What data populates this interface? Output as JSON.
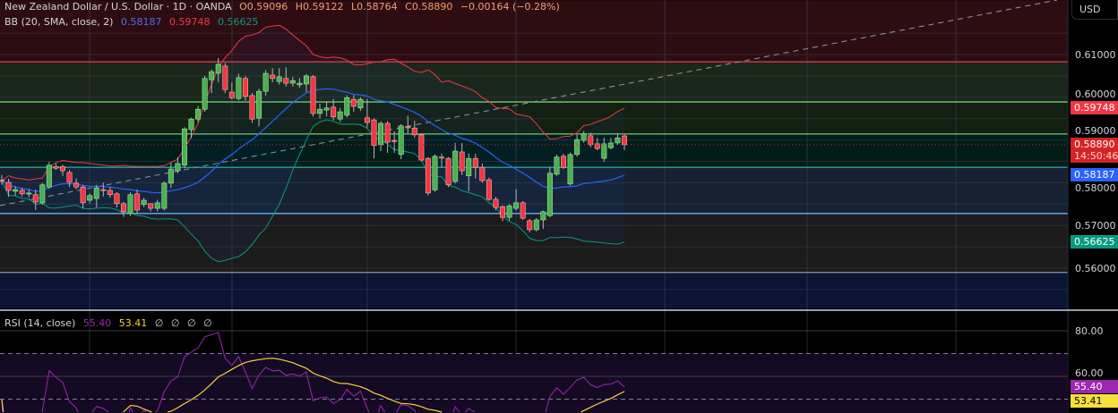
{
  "header": {
    "title": "New Zealand Dollar / U.S. Dollar · 1D · OANDA",
    "open": "O0.59096",
    "high": "H0.59122",
    "low": "L0.58764",
    "close": "C0.58890",
    "change": "−0.00164 (−0.28%)"
  },
  "bb_legend": {
    "label": "BB (20, SMA, close, 2)",
    "basis": "0.58187",
    "upper": "0.59748",
    "lower": "0.56625"
  },
  "rsi_legend": {
    "label": "RSI (14, close)",
    "rsi": "55.40",
    "ma": "53.41",
    "extra": [
      "∅",
      "∅",
      "∅",
      "∅"
    ]
  },
  "currency_button": "USD",
  "colors": {
    "up": "#4caf50",
    "down": "#f23645",
    "bb_basis": "#2962ff",
    "bb_upper": "#f23645",
    "bb_lower": "#089981",
    "rsi": "#9c27b0",
    "rsi_ma": "#f5d33b",
    "header_values": "#f0a070"
  },
  "chart_data": [
    {
      "type": "candlestick",
      "title": "New Zealand Dollar / U.S. Dollar · 1D · OANDA",
      "ylim": [
        0.5505,
        0.6227
      ],
      "grid": true,
      "y_ticks": [
        "0.61000",
        "0.60000",
        "0.59000",
        "0.58000",
        "0.57000",
        "0.56000"
      ],
      "y_tick_values": [
        0.61,
        0.6,
        0.59,
        0.58,
        0.57,
        0.56
      ],
      "ohlc_fields": [
        "open",
        "high",
        "low",
        "close"
      ],
      "ohlc": [
        [
          0.5806,
          0.5818,
          0.5795,
          0.5805
        ],
        [
          0.5801,
          0.5809,
          0.5767,
          0.5782
        ],
        [
          0.578,
          0.5792,
          0.577,
          0.5784
        ],
        [
          0.5782,
          0.5788,
          0.5768,
          0.5774
        ],
        [
          0.5776,
          0.5785,
          0.5766,
          0.5776
        ],
        [
          0.5772,
          0.5784,
          0.5736,
          0.5755
        ],
        [
          0.5753,
          0.5799,
          0.5748,
          0.5795
        ],
        [
          0.579,
          0.5849,
          0.5786,
          0.5841
        ],
        [
          0.5838,
          0.5845,
          0.583,
          0.5834
        ],
        [
          0.5838,
          0.5842,
          0.5816,
          0.5828
        ],
        [
          0.5824,
          0.583,
          0.579,
          0.5801
        ],
        [
          0.5799,
          0.581,
          0.5785,
          0.579
        ],
        [
          0.579,
          0.5795,
          0.574,
          0.5753
        ],
        [
          0.5759,
          0.5775,
          0.5752,
          0.577
        ],
        [
          0.5763,
          0.5795,
          0.5742,
          0.5788
        ],
        [
          0.5784,
          0.58,
          0.5768,
          0.5783
        ],
        [
          0.5782,
          0.579,
          0.5765,
          0.5772
        ],
        [
          0.5774,
          0.5778,
          0.5742,
          0.5751
        ],
        [
          0.5751,
          0.5755,
          0.572,
          0.5732
        ],
        [
          0.5728,
          0.5778,
          0.5722,
          0.5772
        ],
        [
          0.5774,
          0.5784,
          0.5728,
          0.5736
        ],
        [
          0.5749,
          0.5765,
          0.5743,
          0.5759
        ],
        [
          0.5751,
          0.5752,
          0.5733,
          0.574
        ],
        [
          0.574,
          0.576,
          0.5733,
          0.5753
        ],
        [
          0.574,
          0.5803,
          0.5735,
          0.5799
        ],
        [
          0.5799,
          0.5846,
          0.5788,
          0.5832
        ],
        [
          0.5828,
          0.586,
          0.5822,
          0.5845
        ],
        [
          0.5841,
          0.593,
          0.5834,
          0.5926
        ],
        [
          0.5924,
          0.5952,
          0.5904,
          0.5949
        ],
        [
          0.5949,
          0.598,
          0.5942,
          0.5972
        ],
        [
          0.5972,
          0.605,
          0.5966,
          0.6044
        ],
        [
          0.6041,
          0.6065,
          0.601,
          0.606
        ],
        [
          0.6056,
          0.6092,
          0.6035,
          0.6077
        ],
        [
          0.6073,
          0.608,
          0.601,
          0.6018
        ],
        [
          0.6012,
          0.6035,
          0.5995,
          0.5999
        ],
        [
          0.5997,
          0.6055,
          0.5993,
          0.6046
        ],
        [
          0.6044,
          0.605,
          0.5992,
          0.6002
        ],
        [
          0.6004,
          0.601,
          0.594,
          0.5949
        ],
        [
          0.5951,
          0.602,
          0.5932,
          0.6014
        ],
        [
          0.6014,
          0.6064,
          0.6004,
          0.6056
        ],
        [
          0.6052,
          0.6068,
          0.6035,
          0.6044
        ],
        [
          0.6037,
          0.6068,
          0.603,
          0.6048
        ],
        [
          0.6044,
          0.607,
          0.6025,
          0.6033
        ],
        [
          0.6033,
          0.6048,
          0.6025,
          0.6039
        ],
        [
          0.6029,
          0.6045,
          0.6022,
          0.6033
        ],
        [
          0.6031,
          0.6054,
          0.6012,
          0.605
        ],
        [
          0.6048,
          0.6052,
          0.5955,
          0.5962
        ],
        [
          0.5962,
          0.5985,
          0.595,
          0.5972
        ],
        [
          0.597,
          0.599,
          0.5955,
          0.5975
        ],
        [
          0.5977,
          0.5996,
          0.5946,
          0.5954
        ],
        [
          0.5949,
          0.5975,
          0.5942,
          0.5966
        ],
        [
          0.5958,
          0.6005,
          0.5953,
          0.5999
        ],
        [
          0.5995,
          0.6005,
          0.5966,
          0.5979
        ],
        [
          0.5975,
          0.6,
          0.5968,
          0.5995
        ],
        [
          0.5952,
          0.5996,
          0.5929,
          0.5941
        ],
        [
          0.5947,
          0.5951,
          0.5857,
          0.5887
        ],
        [
          0.5889,
          0.5944,
          0.5874,
          0.5939
        ],
        [
          0.5939,
          0.5944,
          0.587,
          0.5895
        ],
        [
          0.5899,
          0.592,
          0.587,
          0.5898
        ],
        [
          0.5866,
          0.5937,
          0.5855,
          0.5933
        ],
        [
          0.5931,
          0.5957,
          0.5916,
          0.5929
        ],
        [
          0.5928,
          0.5945,
          0.5905,
          0.5912
        ],
        [
          0.5912,
          0.5915,
          0.585,
          0.5853
        ],
        [
          0.5857,
          0.586,
          0.577,
          0.5776
        ],
        [
          0.5783,
          0.5866,
          0.5779,
          0.5862
        ],
        [
          0.586,
          0.5868,
          0.5835,
          0.5859
        ],
        [
          0.5857,
          0.586,
          0.579,
          0.5795
        ],
        [
          0.5803,
          0.5893,
          0.5798,
          0.5874
        ],
        [
          0.5872,
          0.5893,
          0.5818,
          0.5828
        ],
        [
          0.5816,
          0.5868,
          0.578,
          0.5857
        ],
        [
          0.5857,
          0.5868,
          0.581,
          0.5836
        ],
        [
          0.5836,
          0.5845,
          0.58,
          0.5805
        ],
        [
          0.5807,
          0.5812,
          0.5758,
          0.5761
        ],
        [
          0.5761,
          0.5767,
          0.5736,
          0.5742
        ],
        [
          0.5744,
          0.5747,
          0.571,
          0.5719
        ],
        [
          0.5719,
          0.575,
          0.5711,
          0.5746
        ],
        [
          0.574,
          0.5785,
          0.5735,
          0.5753
        ],
        [
          0.5753,
          0.5757,
          0.5713,
          0.5717
        ],
        [
          0.5711,
          0.5715,
          0.5684,
          0.569
        ],
        [
          0.569,
          0.5717,
          0.5686,
          0.5713
        ],
        [
          0.5713,
          0.5735,
          0.5692,
          0.5732
        ],
        [
          0.5723,
          0.5837,
          0.5719,
          0.5822
        ],
        [
          0.582,
          0.5866,
          0.5816,
          0.586
        ],
        [
          0.5862,
          0.5868,
          0.5832,
          0.5836
        ],
        [
          0.5797,
          0.5871,
          0.5793,
          0.5866
        ],
        [
          0.5866,
          0.5912,
          0.5861,
          0.5901
        ],
        [
          0.5899,
          0.5921,
          0.5894,
          0.5914
        ],
        [
          0.591,
          0.5917,
          0.5883,
          0.5889
        ],
        [
          0.5891,
          0.5905,
          0.5876,
          0.588
        ],
        [
          0.5857,
          0.5905,
          0.5849,
          0.5891
        ],
        [
          0.5882,
          0.5905,
          0.5878,
          0.5893
        ],
        [
          0.5893,
          0.5916,
          0.5889,
          0.5905
        ],
        [
          0.59096,
          0.59122,
          0.58764,
          0.5889
        ]
      ],
      "horizontal_levels": [
        {
          "price": 0.6083,
          "color": "#e04050"
        },
        {
          "price": 0.5989,
          "color": "#6fcf6f"
        },
        {
          "price": 0.5914,
          "color": "#6fcf6f"
        },
        {
          "price": 0.5836,
          "color": "#26a69a"
        },
        {
          "price": 0.5728,
          "color": "#64b5f6"
        },
        {
          "price": 0.559,
          "color": "#9598a1"
        }
      ],
      "zones": [
        {
          "from": 0.6227,
          "to": 0.6083,
          "color": "#2e0d12"
        },
        {
          "from": 0.6083,
          "to": 0.5989,
          "color": "#1c271b"
        },
        {
          "from": 0.5989,
          "to": 0.5914,
          "color": "#132011"
        },
        {
          "from": 0.5914,
          "to": 0.5836,
          "color": "#021c18"
        },
        {
          "from": 0.5836,
          "to": 0.5728,
          "color": "#162231"
        },
        {
          "from": 0.5728,
          "to": 0.559,
          "color": "#1b1b1c"
        },
        {
          "from": 0.559,
          "to": 0.5505,
          "color": "#0b1434"
        }
      ],
      "price_tags": [
        {
          "text": "0.59748",
          "price": 0.59748,
          "color": "#f23645"
        },
        {
          "text": "0.58890",
          "sub": "14:50:46",
          "price": 0.5889,
          "color": "#d32525"
        },
        {
          "text": "0.58187",
          "price": 0.58187,
          "color": "#2962ff"
        },
        {
          "text": "0.56625",
          "price": 0.56625,
          "color": "#089981"
        }
      ]
    },
    {
      "type": "line",
      "title": "RSI (14, close)",
      "ylim": [
        35,
        89
      ],
      "y_ticks": [
        "80.00",
        "60.00"
      ],
      "y_tick_values": [
        80,
        60
      ],
      "bands": [
        70,
        50
      ],
      "value_tags": [
        {
          "text": "55.40",
          "value": 55.4,
          "color": "#9c27b0",
          "textColor": "#ffffff"
        },
        {
          "text": "53.41",
          "value": 53.41,
          "color": "#f5e13b",
          "textColor": "#000000"
        }
      ]
    }
  ]
}
